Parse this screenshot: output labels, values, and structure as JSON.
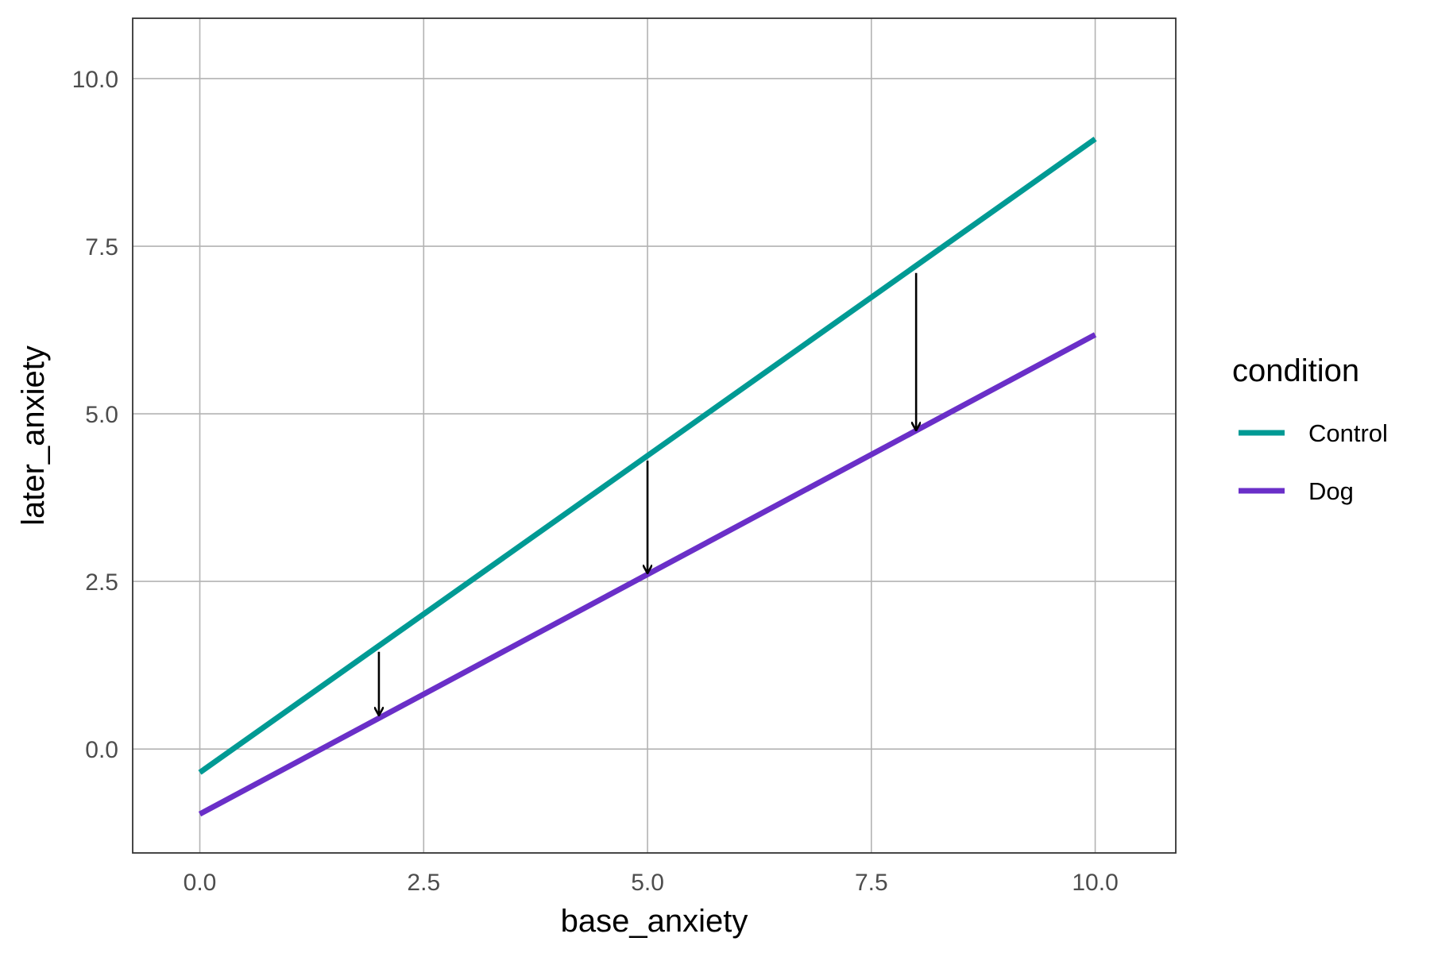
{
  "chart_data": {
    "type": "line",
    "xlabel": "base_anxiety",
    "ylabel": "later_anxiety",
    "xlim": [
      -0.75,
      10.9
    ],
    "ylim": [
      -1.55,
      10.9
    ],
    "x_ticks": [
      0.0,
      2.5,
      5.0,
      7.5,
      10.0
    ],
    "x_tick_labels": [
      "0.0",
      "2.5",
      "5.0",
      "7.5",
      "10.0"
    ],
    "y_ticks": [
      0.0,
      2.5,
      5.0,
      7.5,
      10.0
    ],
    "y_tick_labels": [
      "0.0",
      "2.5",
      "5.0",
      "7.5",
      "10.0"
    ],
    "grid": true,
    "legend": {
      "title": "condition",
      "position": "right"
    },
    "series": [
      {
        "name": "Control",
        "color": "#009a94",
        "x": [
          0,
          10
        ],
        "y": [
          -0.35,
          9.1
        ]
      },
      {
        "name": "Dog",
        "color": "#6a2fc8",
        "x": [
          0,
          10
        ],
        "y": [
          -0.97,
          6.18
        ]
      }
    ],
    "annotations": [
      {
        "type": "arrow",
        "x": 2,
        "y_start": 1.45,
        "y_end": 0.5
      },
      {
        "type": "arrow",
        "x": 5,
        "y_start": 4.3,
        "y_end": 2.62
      },
      {
        "type": "arrow",
        "x": 8,
        "y_start": 7.1,
        "y_end": 4.75
      }
    ]
  }
}
